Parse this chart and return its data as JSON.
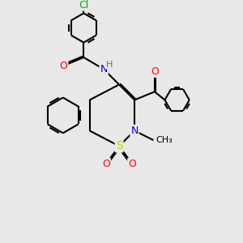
{
  "bg_color": "#e8e8e8",
  "bond_color": "#000000",
  "bond_width": 1.5,
  "dbo": 0.055,
  "atom_colors": {
    "C": "#000000",
    "N": "#0000cc",
    "O": "#ff0000",
    "S": "#cccc00",
    "Cl": "#00aa00",
    "H": "#557777"
  },
  "font_size": 9,
  "fig_size": [
    3.0,
    3.0
  ],
  "dpi": 100
}
